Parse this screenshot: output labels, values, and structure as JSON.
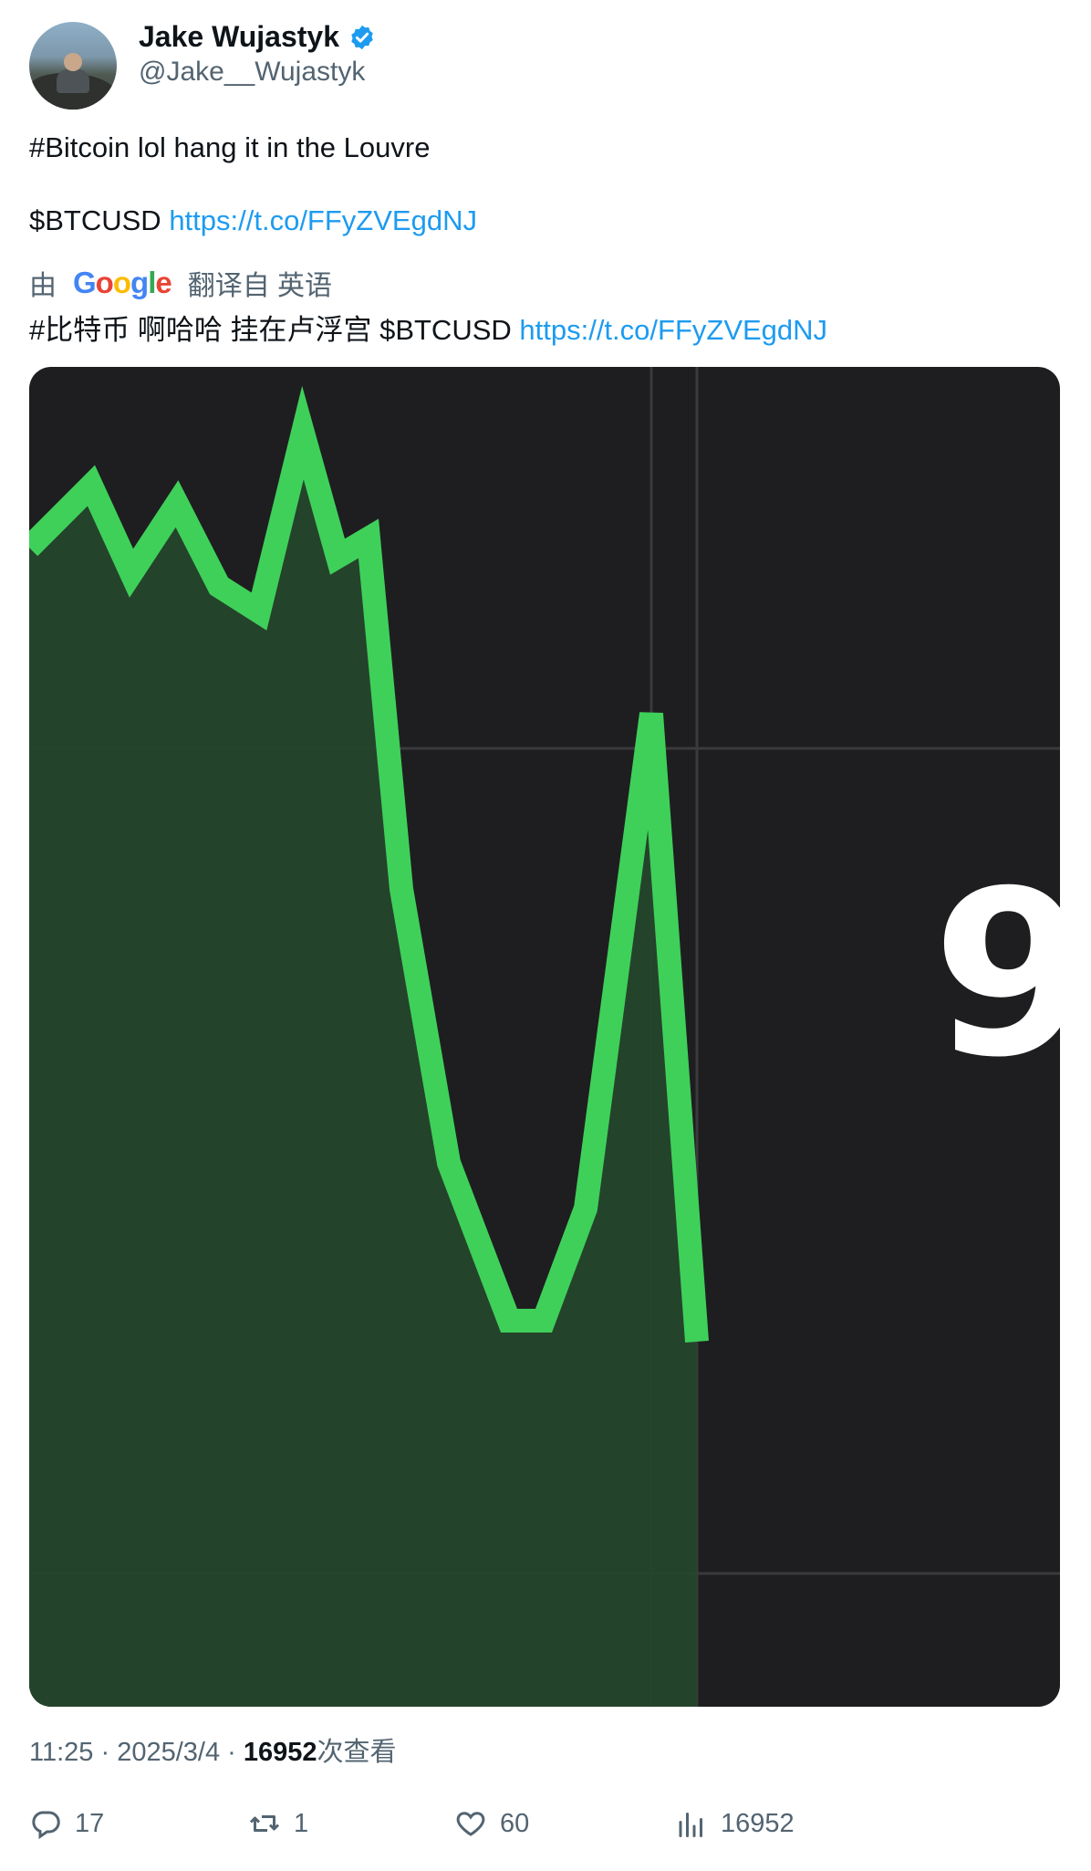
{
  "author": {
    "display_name": "Jake Wujastyk",
    "handle": "@Jake__Wujastyk",
    "verified": true,
    "verified_color": "#1d9bf0"
  },
  "tweet": {
    "line1": "#Bitcoin lol hang it in the Louvre",
    "line2_prefix": "$BTCUSD ",
    "link": "https://t.co/FFyZVEgdNJ",
    "translation_prefix": "由",
    "translation_brand": "Google",
    "translation_suffix": "翻译自 英语",
    "translated_prefix": "#比特币 啊哈哈 挂在卢浮宫 $BTCUSD ",
    "translated_link": "https://t.co/FFyZVEgdNJ"
  },
  "media": {
    "visible_glyph": "9",
    "line_color": "#3fd05a",
    "fill_color": "#25462c",
    "background_color": "#1e1e20"
  },
  "meta": {
    "time": "11:25",
    "separator": " · ",
    "date": "2025/3/4",
    "views_count": "16952",
    "views_label": "次查看"
  },
  "actions": {
    "replies": "17",
    "retweets": "1",
    "likes": "60",
    "views": "16952"
  }
}
